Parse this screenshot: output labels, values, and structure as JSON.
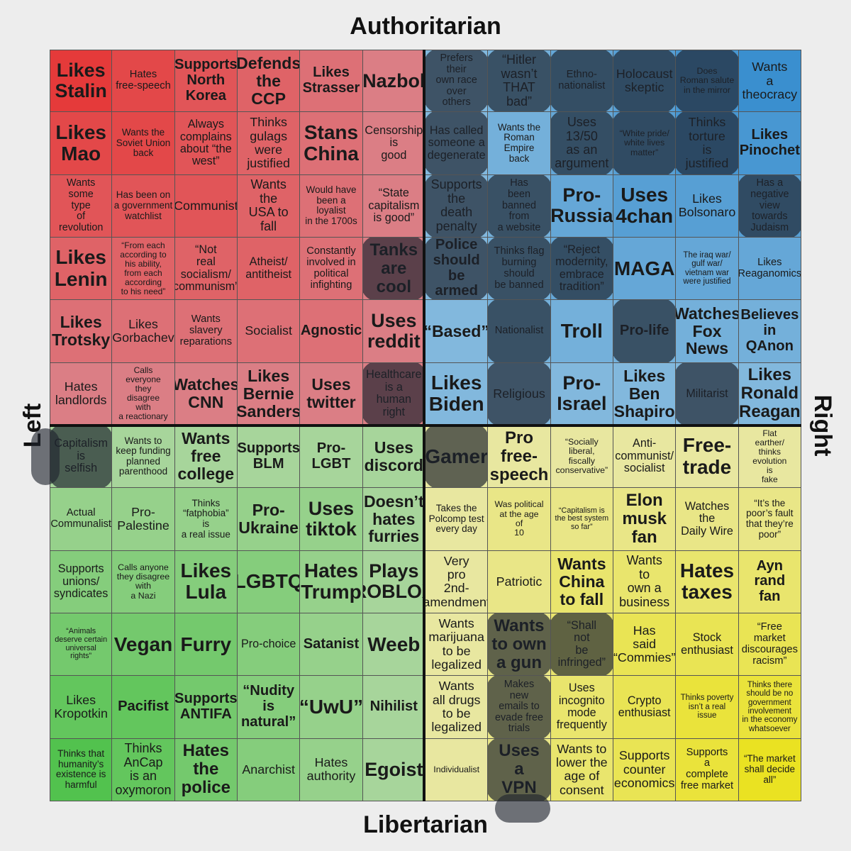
{
  "axes": {
    "top": "Authoritarian",
    "bottom": "Libertarian",
    "left": "Left",
    "right": "Right"
  },
  "quadrant_colors": {
    "auth_left": [
      "#e53a3a",
      "#d98a92"
    ],
    "auth_right": [
      "#3a8fcf",
      "#8fbfdf"
    ],
    "lib_left": [
      "#52c24e",
      "#b6d8a8"
    ],
    "lib_right": [
      "#eae222",
      "#e8e8b6"
    ]
  },
  "scribble_color": "#2a2f38",
  "grid": [
    [
      "Likes\nStalin",
      "Hates\nfree-speech",
      "Supports\nNorth\nKorea",
      "Defends\nthe\nCCP",
      "Likes\nStrasser",
      "Nazbol",
      "Prefers\ntheir\nown race\nover\nothers",
      "“Hitler\nwasn’t\nTHAT\nbad”",
      "Ethno-\nnationalist",
      "Holocaust\nskeptic",
      "Does\nRoman salute\nin the mirror",
      "Wants\na\ntheocracy"
    ],
    [
      "Likes\nMao",
      "Wants the\nSoviet Union\nback",
      "Always\ncomplains\nabout “the\nwest”",
      "Thinks\ngulags\nwere\njustified",
      "Stans\nChina",
      "Censorship\nis\ngood",
      "Has called\nsomeone a\ndegenerate",
      "Wants the\nRoman Empire\nback",
      "Uses\n13/50\nas an\nargument",
      "“White pride/\nwhite lives\nmatter”",
      "Thinks\ntorture\nis\njustified",
      "Likes\nPinochet"
    ],
    [
      "Wants\nsome\ntype\nof\nrevolution",
      "Has been on\na government\nwatchlist",
      "Communist",
      "Wants\nthe\nUSA to\nfall",
      "Would have\nbeen a\nloyalist\nin the 1700s",
      "“State\ncapitalism\nis good”",
      "Supports\nthe\ndeath\npenalty",
      "Has\nbeen\nbanned\nfrom\na website",
      "Pro-\nRussia",
      "Uses\n4chan",
      "Likes\nBolsonaro",
      "Has a\nnegative\nview\ntowards\nJudaism"
    ],
    [
      "Likes\nLenin",
      "“From each\naccording to\nhis ability,\nfrom each\naccording\nto his need”",
      "“Not\nreal\nsocialism/\ncommunism”",
      "Atheist/\nantitheist",
      "Constantly\ninvolved in\npolitical\ninfighting",
      "Tanks\nare\ncool",
      "Police\nshould\nbe armed",
      "Thinks flag\nburning\nshould\nbe banned",
      "“Reject\nmodernity,\nembrace\ntradition”",
      "MAGA",
      "The iraq war/\ngulf war/\nvietnam war\nwere justified",
      "Likes\nReaganomics"
    ],
    [
      "Likes\nTrotsky",
      "Likes\nGorbachev",
      "Wants\nslavery\nreparations",
      "Socialist",
      "Agnostic",
      "Uses\nreddit",
      "“Based”",
      "Nationalist",
      "Troll",
      "Pro-life",
      "Watches\nFox\nNews",
      "Believes\nin\nQAnon"
    ],
    [
      "Hates\nlandlords",
      "Calls\neveryone\nthey\ndisagree\nwith\na reactionary",
      "Watches\nCNN",
      "Likes\nBernie\nSanders",
      "Uses\ntwitter",
      "Healthcare\nis a\nhuman\nright",
      "Likes\nBiden",
      "Religious",
      "Pro-\nIsrael",
      "Likes\nBen\nShapiro",
      "Militarist",
      "Likes\nRonald\nReagan"
    ],
    [
      "Capitalism\nis\nselfish",
      "Wants to\nkeep funding\nplanned\nparenthood",
      "Wants\nfree\ncollege",
      "Supports\nBLM",
      "Pro-LGBT",
      "Uses\ndiscord",
      "Gamer",
      "Pro\nfree-\nspeech",
      "“Socially\nliberal,\nfiscally\nconservative”",
      "Anti-\ncommunist/\nsocialist",
      "Free-\ntrade",
      "Flat\nearther/\nthinks\nevolution\nis\nfake"
    ],
    [
      "Actual\nCommunalist",
      "Pro-\nPalestine",
      "Thinks\n“fatphobia”\nis\na real issue",
      "Pro-\nUkraine",
      "Uses\ntiktok",
      "Doesn’t\nhates\nfurries",
      "Takes the\nPolcomp test\nevery day",
      "Was political\nat the age\nof\n10",
      "“Capitalism is\nthe best system\nso far”",
      "Elon\nmusk\nfan",
      "Watches\nthe\nDaily Wire",
      "“It’s the\npoor’s fault\nthat they’re\npoor”"
    ],
    [
      "Supports\nunions/\nsyndicates",
      "Calls anyone\nthey disagree\nwith\na Nazi",
      "Likes\nLula",
      "LGBTQ",
      "Hates\nTrump",
      "Plays\nROBLOX",
      "Very\npro\n2nd-\namendment",
      "Patriotic",
      "Wants\nChina\nto fall",
      "Wants\nto\nown a\nbusiness",
      "Hates\ntaxes",
      "Ayn rand\nfan"
    ],
    [
      "“Animals\ndeserve certain\nuniversal\nrights”",
      "Vegan",
      "Furry",
      "Pro-choice",
      "Satanist",
      "Weeb",
      "Wants\nmarijuana\nto be\nlegalized",
      "Wants\nto own\na gun",
      "“Shall\nnot\nbe\ninfringed”",
      "Has\nsaid\n“Commies”",
      "Stock\nenthusiast",
      "“Free\nmarket\ndiscourages\nracism”"
    ],
    [
      "Likes\nKropotkin",
      "Pacifist",
      "Supports\nANTIFA",
      "“Nudity\nis\nnatural”",
      "“UwU”",
      "Nihilist",
      "Wants\nall drugs\nto be\nlegalized",
      "Makes\nnew\nemails to\nevade free\ntrials",
      "Uses\nincognito\nmode\nfrequently",
      "Crypto\nenthusiast",
      "Thinks poverty\nisn’t a real\nissue",
      "Thinks there\nshould be no\ngovernment\ninvolvement\nin the economy\nwhatsoever"
    ],
    [
      "Thinks that\nhumanity’s\nexistence is\nharmful",
      "Thinks\nAnCap\nis an\noxymoron",
      "Hates\nthe\npolice",
      "Anarchist",
      "Hates\nauthority",
      "Egoist",
      "Individualist",
      "Uses\na\nVPN",
      "Wants to\nlower the\nage of\nconsent",
      "Supports\ncounter\neconomics",
      "Supports\na\ncomplete\nfree market",
      "“The market\nshall decide\nall”"
    ]
  ],
  "marked_cells": [
    [
      0,
      6
    ],
    [
      0,
      7
    ],
    [
      0,
      8
    ],
    [
      0,
      9
    ],
    [
      0,
      10
    ],
    [
      1,
      6
    ],
    [
      1,
      8
    ],
    [
      1,
      9
    ],
    [
      1,
      10
    ],
    [
      2,
      6
    ],
    [
      2,
      7
    ],
    [
      2,
      11
    ],
    [
      3,
      5
    ],
    [
      3,
      6
    ],
    [
      3,
      7
    ],
    [
      3,
      8
    ],
    [
      4,
      7
    ],
    [
      4,
      9
    ],
    [
      5,
      5
    ],
    [
      5,
      7
    ],
    [
      5,
      10
    ],
    [
      6,
      0
    ],
    [
      6,
      6
    ],
    [
      9,
      7
    ],
    [
      9,
      8
    ],
    [
      10,
      7
    ],
    [
      11,
      7
    ]
  ]
}
